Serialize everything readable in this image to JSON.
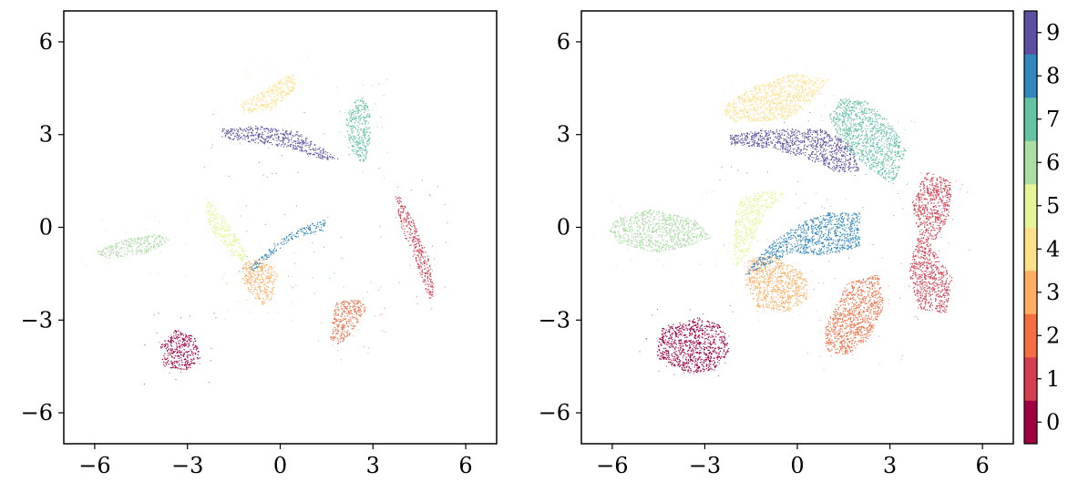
{
  "chart_data": [
    {
      "type": "scatter",
      "title": "",
      "xlabel": "",
      "ylabel": "",
      "xlim": [
        -7,
        7
      ],
      "ylim": [
        -7,
        7
      ],
      "xticks": [
        -6,
        -3,
        0,
        3,
        6
      ],
      "yticks": [
        6,
        3,
        0,
        -3,
        -6
      ],
      "xtick_labels": [
        "−6",
        "−3",
        "0",
        "3",
        "6"
      ],
      "ytick_labels": [
        "6",
        "3",
        "0",
        "−3",
        "−6"
      ],
      "grid": false,
      "clusters": [
        {
          "label": 0,
          "color": "#9e0142",
          "points": [
            [
              -3.4,
              -3.3
            ],
            [
              -2.8,
              -3.5
            ],
            [
              -2.6,
              -4.2
            ],
            [
              -3.0,
              -4.6
            ],
            [
              -3.8,
              -4.5
            ],
            [
              -3.9,
              -3.8
            ]
          ]
        },
        {
          "label": 1,
          "color": "#d53e4f",
          "points": [
            [
              3.8,
              1.1
            ],
            [
              4.3,
              0.2
            ],
            [
              4.8,
              -1.0
            ],
            [
              5.0,
              -2.2
            ],
            [
              4.8,
              -2.3
            ],
            [
              4.4,
              -1.2
            ],
            [
              3.9,
              0.0
            ],
            [
              3.7,
              1.0
            ]
          ]
        },
        {
          "label": 2,
          "color": "#f46d43",
          "points": [
            [
              1.8,
              -2.4
            ],
            [
              2.6,
              -2.3
            ],
            [
              2.8,
              -2.6
            ],
            [
              2.3,
              -3.4
            ],
            [
              1.9,
              -3.8
            ],
            [
              1.6,
              -3.6
            ],
            [
              1.7,
              -2.8
            ]
          ]
        },
        {
          "label": 3,
          "color": "#fdae61",
          "points": [
            [
              -1.2,
              -1.1
            ],
            [
              -0.5,
              -1.0
            ],
            [
              -0.1,
              -1.5
            ],
            [
              -0.3,
              -2.3
            ],
            [
              -0.6,
              -2.5
            ],
            [
              -1.1,
              -2.0
            ],
            [
              -1.3,
              -1.5
            ]
          ]
        },
        {
          "label": 4,
          "color": "#fee08b",
          "points": [
            [
              -1.3,
              4.0
            ],
            [
              -0.5,
              4.5
            ],
            [
              0.4,
              5.0
            ],
            [
              0.5,
              4.5
            ],
            [
              -0.3,
              3.8
            ],
            [
              -1.2,
              3.7
            ]
          ]
        },
        {
          "label": 5,
          "color": "#e6f598",
          "points": [
            [
              -2.5,
              1.0
            ],
            [
              -2.0,
              0.6
            ],
            [
              -1.2,
              -0.6
            ],
            [
              -1.0,
              -1.2
            ],
            [
              -1.5,
              -0.9
            ],
            [
              -2.1,
              -0.3
            ],
            [
              -2.4,
              0.3
            ]
          ]
        },
        {
          "label": 6,
          "color": "#abdda4",
          "points": [
            [
              -6.0,
              -0.8
            ],
            [
              -5.2,
              -0.4
            ],
            [
              -4.0,
              -0.2
            ],
            [
              -3.6,
              -0.4
            ],
            [
              -4.2,
              -0.8
            ],
            [
              -5.6,
              -1.0
            ]
          ]
        },
        {
          "label": 7,
          "color": "#66c2a5",
          "points": [
            [
              2.6,
              4.3
            ],
            [
              2.9,
              3.8
            ],
            [
              2.9,
              2.8
            ],
            [
              2.7,
              2.0
            ],
            [
              2.2,
              2.6
            ],
            [
              2.1,
              3.6
            ],
            [
              2.4,
              4.1
            ]
          ]
        },
        {
          "label": 8,
          "color": "#3288bd",
          "points": [
            [
              -1.0,
              -1.3
            ],
            [
              -0.2,
              -0.5
            ],
            [
              0.6,
              0.0
            ],
            [
              1.5,
              0.3
            ],
            [
              1.4,
              -0.1
            ],
            [
              0.5,
              -0.3
            ],
            [
              -0.2,
              -0.8
            ],
            [
              -0.9,
              -1.4
            ]
          ]
        },
        {
          "label": 9,
          "color": "#5e4fa2",
          "points": [
            [
              -1.9,
              3.2
            ],
            [
              -0.8,
              3.3
            ],
            [
              0.6,
              3.1
            ],
            [
              1.9,
              2.2
            ],
            [
              1.4,
              2.2
            ],
            [
              0.2,
              2.6
            ],
            [
              -1.2,
              2.8
            ],
            [
              -1.9,
              2.9
            ]
          ]
        }
      ]
    },
    {
      "type": "scatter",
      "title": "",
      "xlabel": "",
      "ylabel": "",
      "xlim": [
        -7,
        7
      ],
      "ylim": [
        -7,
        7
      ],
      "xticks": [
        -6,
        -3,
        0,
        3,
        6
      ],
      "yticks": [
        6,
        3,
        0,
        -3,
        -6
      ],
      "xtick_labels": [
        "−6",
        "−3",
        "0",
        "3",
        "6"
      ],
      "ytick_labels": [
        "6",
        "3",
        "0",
        "−3",
        "−6"
      ],
      "grid": false,
      "clusters": [
        {
          "label": 0,
          "color": "#9e0142",
          "points": [
            [
              -4.4,
              -3.2
            ],
            [
              -3.2,
              -2.9
            ],
            [
              -2.4,
              -3.2
            ],
            [
              -2.2,
              -4.0
            ],
            [
              -2.7,
              -4.6
            ],
            [
              -3.5,
              -4.7
            ],
            [
              -4.6,
              -4.2
            ]
          ]
        },
        {
          "label": 1,
          "color": "#d53e4f",
          "points": [
            [
              4.2,
              1.8
            ],
            [
              5.0,
              1.5
            ],
            [
              4.9,
              0.3
            ],
            [
              4.3,
              -0.6
            ],
            [
              5.0,
              -1.6
            ],
            [
              4.8,
              -2.8
            ],
            [
              3.9,
              -2.6
            ],
            [
              3.6,
              -1.4
            ],
            [
              3.9,
              -0.2
            ],
            [
              3.7,
              0.8
            ],
            [
              4.0,
              1.5
            ]
          ]
        },
        {
          "label": 2,
          "color": "#f46d43",
          "points": [
            [
              1.6,
              -1.8
            ],
            [
              2.6,
              -1.5
            ],
            [
              2.8,
              -2.5
            ],
            [
              2.3,
              -3.6
            ],
            [
              1.6,
              -4.1
            ],
            [
              0.9,
              -4.0
            ],
            [
              0.9,
              -3.2
            ],
            [
              1.3,
              -2.4
            ]
          ]
        },
        {
          "label": 3,
          "color": "#fdae61",
          "points": [
            [
              -1.6,
              -1.0
            ],
            [
              -0.8,
              -0.9
            ],
            [
              0.3,
              -1.5
            ],
            [
              0.3,
              -2.3
            ],
            [
              -0.3,
              -2.7
            ],
            [
              -1.3,
              -2.6
            ],
            [
              -1.7,
              -1.8
            ]
          ]
        },
        {
          "label": 4,
          "color": "#fee08b",
          "points": [
            [
              -2.3,
              4.0
            ],
            [
              -1.4,
              4.6
            ],
            [
              -0.1,
              5.0
            ],
            [
              1.0,
              4.8
            ],
            [
              0.4,
              4.0
            ],
            [
              -0.4,
              3.5
            ],
            [
              -2.0,
              3.4
            ],
            [
              -2.4,
              3.7
            ]
          ]
        },
        {
          "label": 5,
          "color": "#e6f598",
          "points": [
            [
              -1.8,
              1.0
            ],
            [
              -1.0,
              1.2
            ],
            [
              -0.4,
              1.1
            ],
            [
              -1.1,
              0.4
            ],
            [
              -1.6,
              -0.8
            ],
            [
              -2.0,
              -1.3
            ],
            [
              -2.1,
              -0.3
            ],
            [
              -2.0,
              0.5
            ]
          ]
        },
        {
          "label": 6,
          "color": "#abdda4",
          "points": [
            [
              -5.9,
              0.3
            ],
            [
              -4.8,
              0.6
            ],
            [
              -3.4,
              0.3
            ],
            [
              -2.8,
              -0.3
            ],
            [
              -3.6,
              -0.6
            ],
            [
              -4.6,
              -0.8
            ],
            [
              -5.8,
              -0.5
            ],
            [
              -6.1,
              -0.1
            ]
          ]
        },
        {
          "label": 7,
          "color": "#66c2a5",
          "points": [
            [
              1.4,
              4.2
            ],
            [
              2.2,
              4.1
            ],
            [
              3.1,
              3.3
            ],
            [
              3.5,
              2.5
            ],
            [
              3.1,
              1.4
            ],
            [
              2.6,
              1.7
            ],
            [
              1.5,
              2.6
            ],
            [
              1.0,
              3.6
            ]
          ]
        },
        {
          "label": 8,
          "color": "#3288bd",
          "points": [
            [
              -1.8,
              -1.6
            ],
            [
              -0.8,
              -0.4
            ],
            [
              0.2,
              0.2
            ],
            [
              1.0,
              0.5
            ],
            [
              2.0,
              0.5
            ],
            [
              2.0,
              -0.6
            ],
            [
              1.0,
              -0.9
            ],
            [
              -0.2,
              -0.8
            ],
            [
              -1.2,
              -1.3
            ]
          ]
        },
        {
          "label": 9,
          "color": "#5e4fa2",
          "points": [
            [
              -2.2,
              3.0
            ],
            [
              -0.9,
              3.2
            ],
            [
              0.9,
              3.2
            ],
            [
              1.8,
              2.6
            ],
            [
              2.0,
              1.8
            ],
            [
              1.2,
              1.8
            ],
            [
              0.2,
              2.3
            ],
            [
              -1.2,
              2.6
            ],
            [
              -2.2,
              2.7
            ]
          ]
        }
      ]
    }
  ],
  "colorbar": {
    "labels": [
      "0",
      "1",
      "2",
      "3",
      "4",
      "5",
      "6",
      "7",
      "8",
      "9"
    ],
    "colors": [
      "#9e0142",
      "#d53e4f",
      "#f46d43",
      "#fdae61",
      "#fee08b",
      "#e6f598",
      "#abdda4",
      "#66c2a5",
      "#3288bd",
      "#5e4fa2"
    ]
  }
}
